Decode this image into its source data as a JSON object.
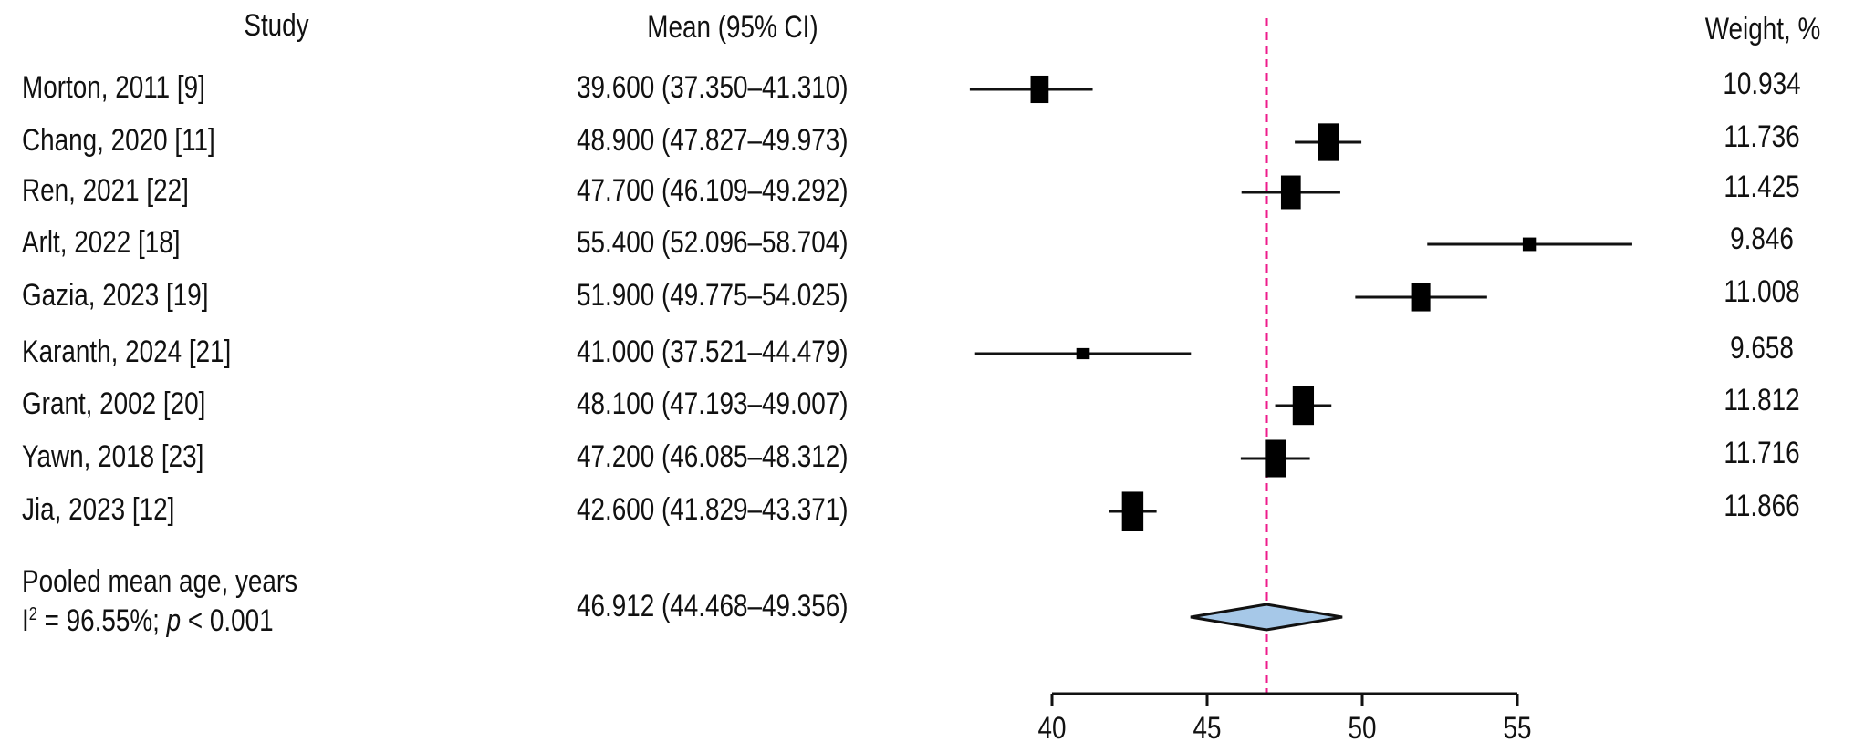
{
  "chart_data": {
    "type": "forest",
    "columns": {
      "study": "Study",
      "mean_ci": "Mean (95% CI)",
      "weight": "Weight, %"
    },
    "studies": [
      {
        "label": "Morton, 2011 [9]",
        "mean": 39.6,
        "lower": 37.35,
        "upper": 41.31,
        "mean_ci_text": "39.600 (37.350–41.310)",
        "weight": 10.934,
        "weight_text": "10.934"
      },
      {
        "label": "Chang, 2020 [11]",
        "mean": 48.9,
        "lower": 47.827,
        "upper": 49.973,
        "mean_ci_text": "48.900 (47.827–49.973)",
        "weight": 11.736,
        "weight_text": "11.736"
      },
      {
        "label": "Ren, 2021 [22]",
        "mean": 47.7,
        "lower": 46.109,
        "upper": 49.292,
        "mean_ci_text": "47.700 (46.109–49.292)",
        "weight": 11.425,
        "weight_text": "11.425"
      },
      {
        "label": "Arlt, 2022 [18]",
        "mean": 55.4,
        "lower": 52.096,
        "upper": 58.704,
        "mean_ci_text": "55.400 (52.096–58.704)",
        "weight": 9.846,
        "weight_text": "9.846"
      },
      {
        "label": "Gazia, 2023 [19]",
        "mean": 51.9,
        "lower": 49.775,
        "upper": 54.025,
        "mean_ci_text": "51.900 (49.775–54.025)",
        "weight": 11.008,
        "weight_text": "11.008"
      },
      {
        "label": "Karanth, 2024 [21]",
        "mean": 41.0,
        "lower": 37.521,
        "upper": 44.479,
        "mean_ci_text": "41.000 (37.521–44.479)",
        "weight": 9.658,
        "weight_text": "9.658"
      },
      {
        "label": "Grant, 2002 [20]",
        "mean": 48.1,
        "lower": 47.193,
        "upper": 49.007,
        "mean_ci_text": "48.100 (47.193–49.007)",
        "weight": 11.812,
        "weight_text": "11.812"
      },
      {
        "label": "Yawn, 2018 [23]",
        "mean": 47.2,
        "lower": 46.085,
        "upper": 48.312,
        "mean_ci_text": "47.200 (46.085–48.312)",
        "weight": 11.716,
        "weight_text": "11.716"
      },
      {
        "label": "Jia, 2023 [12]",
        "mean": 42.6,
        "lower": 41.829,
        "upper": 43.371,
        "mean_ci_text": "42.600 (41.829–43.371)",
        "weight": 11.866,
        "weight_text": "11.866"
      }
    ],
    "pooled": {
      "label": "Pooled mean age, years",
      "heterogeneity_prefix": "I",
      "heterogeneity_sup": "2",
      "heterogeneity_mid": " = 96.55%; ",
      "p_symbol": "p",
      "p_rest": " < 0.001",
      "mean": 46.912,
      "lower": 44.468,
      "upper": 49.356,
      "mean_ci_text": "46.912 (44.468–49.356)"
    },
    "reference_line": 46.912,
    "xaxis": {
      "range": [
        40,
        55
      ],
      "ticks": [
        40,
        45,
        50,
        55
      ],
      "tick_labels": [
        "40",
        "45",
        "50",
        "55"
      ],
      "label": ""
    },
    "colors": {
      "reference_line": "#ee1c8c",
      "diamond_fill": "#a6c8e8",
      "box": "#000000"
    }
  }
}
